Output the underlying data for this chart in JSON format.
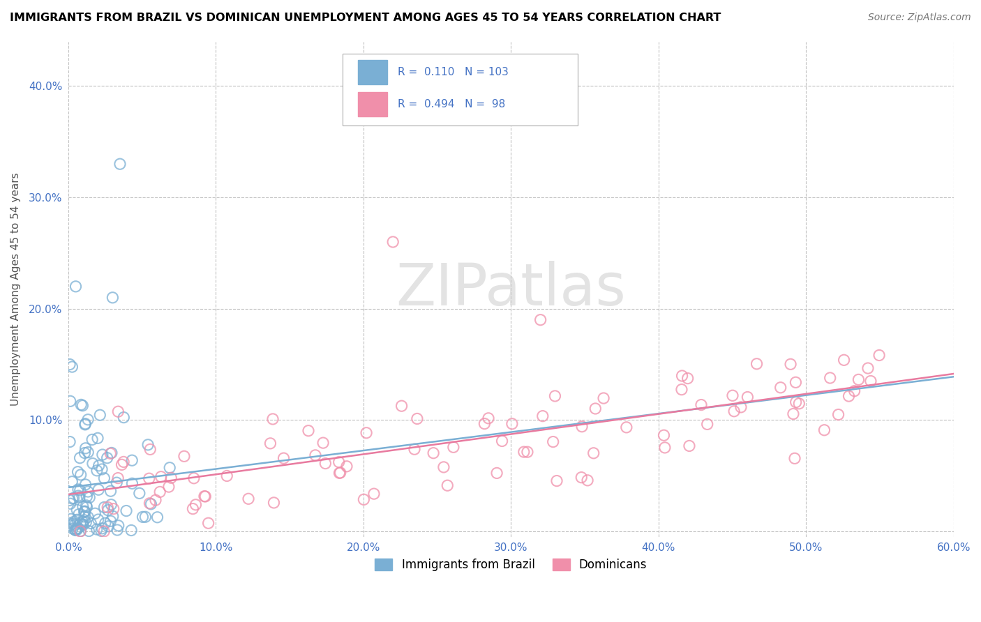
{
  "title": "IMMIGRANTS FROM BRAZIL VS DOMINICAN UNEMPLOYMENT AMONG AGES 45 TO 54 YEARS CORRELATION CHART",
  "source_text": "Source: ZipAtlas.com",
  "ylabel": "Unemployment Among Ages 45 to 54 years",
  "xlabel": "",
  "xlim": [
    0.0,
    0.6
  ],
  "ylim": [
    -0.005,
    0.44
  ],
  "xticks": [
    0.0,
    0.1,
    0.2,
    0.3,
    0.4,
    0.5,
    0.6
  ],
  "yticks": [
    0.0,
    0.1,
    0.2,
    0.3,
    0.4
  ],
  "xticklabels": [
    "0.0%",
    "10.0%",
    "20.0%",
    "30.0%",
    "40.0%",
    "50.0%",
    "60.0%"
  ],
  "yticklabels": [
    "",
    "10.0%",
    "20.0%",
    "30.0%",
    "40.0%"
  ],
  "watermark": "ZIPatlas",
  "legend_labels": [
    "Immigrants from Brazil",
    "Dominicans"
  ],
  "brazil_color": "#7aafd4",
  "dominican_color": "#f08faa",
  "brazil_line_color": "#7aafd4",
  "dominican_line_color": "#e87a9f",
  "brazil_R": 0.11,
  "brazil_N": 103,
  "dominican_R": 0.494,
  "dominican_N": 98
}
